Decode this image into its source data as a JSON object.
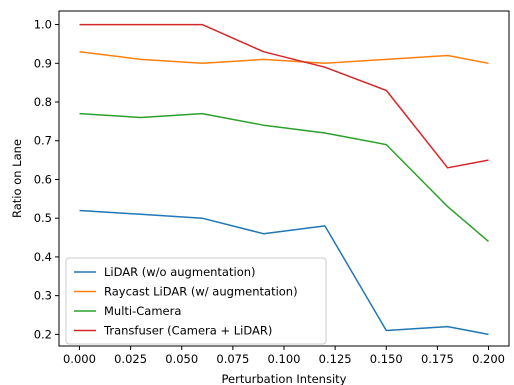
{
  "chart_data": {
    "type": "line",
    "title": "",
    "xlabel": "Perturbation Intensity",
    "ylabel": "Ratio on Lane",
    "xlim": [
      -0.01,
      0.21
    ],
    "ylim": [
      0.17,
      1.035
    ],
    "grid": false,
    "legend_position": "lower-left",
    "x": [
      0.0,
      0.03,
      0.06,
      0.09,
      0.12,
      0.15,
      0.18,
      0.2
    ],
    "x_ticks": [
      {
        "value": 0.0,
        "label": "0.000"
      },
      {
        "value": 0.025,
        "label": "0.025"
      },
      {
        "value": 0.05,
        "label": "0.050"
      },
      {
        "value": 0.075,
        "label": "0.075"
      },
      {
        "value": 0.1,
        "label": "0.100"
      },
      {
        "value": 0.125,
        "label": "0.125"
      },
      {
        "value": 0.15,
        "label": "0.150"
      },
      {
        "value": 0.175,
        "label": "0.175"
      },
      {
        "value": 0.2,
        "label": "0.200"
      }
    ],
    "y_ticks": [
      {
        "value": 0.2,
        "label": "0.2"
      },
      {
        "value": 0.3,
        "label": "0.3"
      },
      {
        "value": 0.4,
        "label": "0.4"
      },
      {
        "value": 0.5,
        "label": "0.5"
      },
      {
        "value": 0.6,
        "label": "0.6"
      },
      {
        "value": 0.7,
        "label": "0.7"
      },
      {
        "value": 0.8,
        "label": "0.8"
      },
      {
        "value": 0.9,
        "label": "0.9"
      },
      {
        "value": 1.0,
        "label": "1.0"
      }
    ],
    "series": [
      {
        "name": "LiDAR (w/o augmentation)",
        "color": "#1f77b4",
        "values": [
          0.52,
          0.51,
          0.5,
          0.46,
          0.48,
          0.21,
          0.22,
          0.2
        ]
      },
      {
        "name": "Raycast LiDAR (w/ augmentation)",
        "color": "#ff7f0e",
        "values": [
          0.93,
          0.91,
          0.9,
          0.91,
          0.9,
          0.91,
          0.92,
          0.9
        ]
      },
      {
        "name": "Multi-Camera",
        "color": "#2ca02c",
        "values": [
          0.77,
          0.76,
          0.77,
          0.74,
          0.72,
          0.69,
          0.53,
          0.44
        ]
      },
      {
        "name": "Transfuser (Camera + LiDAR)",
        "color": "#d62728",
        "values": [
          1.0,
          1.0,
          1.0,
          0.93,
          0.89,
          0.83,
          0.63,
          0.65
        ]
      }
    ]
  }
}
